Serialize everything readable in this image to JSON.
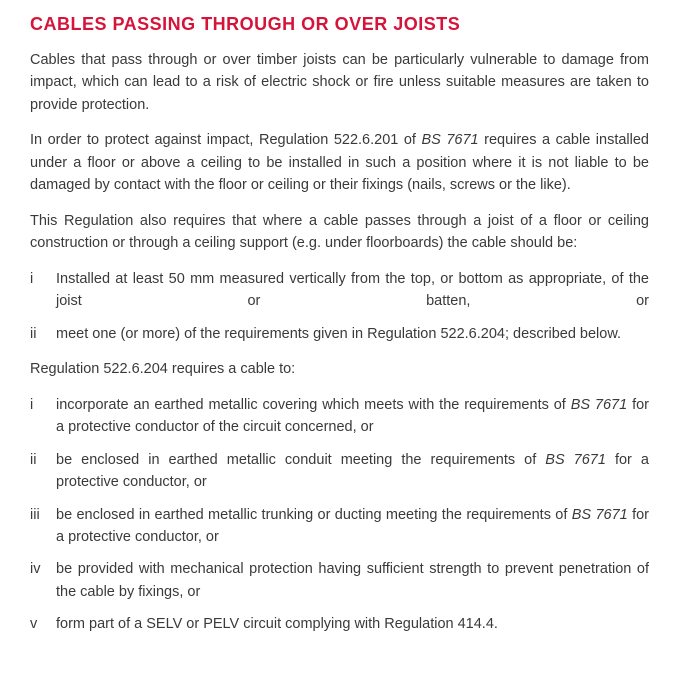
{
  "heading": {
    "text": "CABLES PASSING THROUGH OR OVER JOISTS",
    "color": "#d6143a"
  },
  "bodyColor": "#3a3a3a",
  "p1": "Cables that pass through or over timber joists can be particularly vulnerable to damage from impact, which can lead to a risk of electric shock or fire unless suitable measures are taken to provide protection.",
  "p2_a": "In order to protect against impact, Regulation 522.6.201 of ",
  "p2_bs": "BS 7671",
  "p2_b": " requires a cable installed under a floor or above a ceiling to be installed in such a position where it is not liable to be damaged by contact with the floor or ceiling or their fixings (nails, screws or the like).",
  "p3": "This Regulation also requires that where a cable passes through a joist of a floor or ceiling construction or through a ceiling support (e.g. under floorboards) the cable should be:",
  "list1": {
    "i": {
      "m": "i",
      "t": "Installed at least 50 mm measured vertically from the top, or bottom as appropriate, of the joist or batten, or"
    },
    "ii": {
      "m": "ii",
      "t": "meet one (or more) of the requirements given in Regulation 522.6.204; described below."
    }
  },
  "p4": "Regulation 522.6.204 requires a cable to:",
  "list2": {
    "i": {
      "m": "i",
      "a": "incorporate an earthed metallic covering which meets with the requirements of ",
      "bs": "BS 7671",
      "b": " for a protective conductor of the circuit concerned, or"
    },
    "ii": {
      "m": "ii",
      "a": "be enclosed in earthed metallic conduit meeting the requirements of ",
      "bs": "BS 7671",
      "b": " for a protective conductor, or"
    },
    "iii": {
      "m": "iii",
      "a": "be enclosed in earthed metallic trunking or ducting meeting the requirements of ",
      "bs": "BS 7671",
      "b": " for a protective conductor, or"
    },
    "iv": {
      "m": "iv",
      "t": "be provided with mechanical protection having sufficient strength to prevent penetration of the cable by fixings, or"
    },
    "v": {
      "m": "v",
      "t": "form part of a SELV or PELV circuit complying with Regulation 414.4."
    }
  }
}
